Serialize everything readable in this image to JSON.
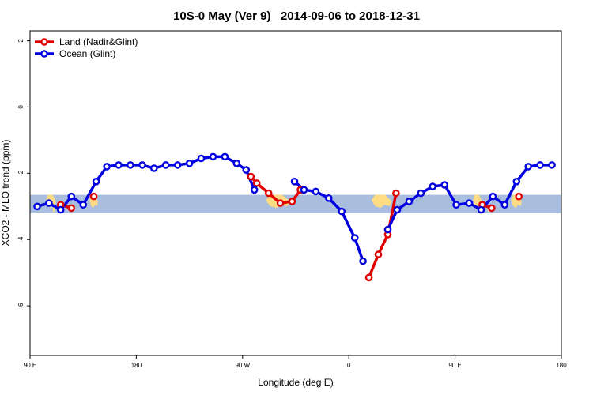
{
  "chart_data": {
    "type": "line",
    "title": "10S-0 May (Ver 9)   2014-09-06 to 2018-12-31",
    "xlabel": "Longitude (deg E)",
    "ylabel": "XCO2 - MLO trend (ppm)",
    "xlim": [
      90,
      540
    ],
    "ylim": [
      -7.5,
      2.3
    ],
    "x_ticks": [
      {
        "value": 90,
        "label": "90 E"
      },
      {
        "value": 180,
        "label": "180"
      },
      {
        "value": 270,
        "label": "90 W"
      },
      {
        "value": 360,
        "label": "0"
      },
      {
        "value": 450,
        "label": "90 E"
      },
      {
        "value": 540,
        "label": "180"
      }
    ],
    "y_ticks": [
      {
        "value": 2,
        "label": "2"
      },
      {
        "value": 0,
        "label": "0"
      },
      {
        "value": -2,
        "label": "-2"
      },
      {
        "value": -4,
        "label": "-4"
      },
      {
        "value": -6,
        "label": "-6"
      }
    ],
    "legend_position": "top-left",
    "band": {
      "ymin": -3.2,
      "ymax": -2.65
    },
    "colors": {
      "band": "#a9bedf",
      "land": "#fedc83",
      "land_series": "#e00000",
      "ocean_series": "#0000e0"
    },
    "series": [
      {
        "name": "Land (Nadir&Glint)",
        "color": "#e00000",
        "segments": [
          [
            [
              116,
              -2.95
            ],
            [
              125,
              -3.05
            ]
          ],
          [
            [
              144,
              -2.7
            ]
          ],
          [
            [
              277,
              -2.1
            ],
            [
              282,
              -2.3
            ],
            [
              292,
              -2.6
            ],
            [
              302,
              -2.9
            ],
            [
              312,
              -2.85
            ],
            [
              319,
              -2.5
            ]
          ],
          [
            [
              377,
              -5.15
            ],
            [
              385,
              -4.45
            ],
            [
              393,
              -3.85
            ],
            [
              400,
              -2.6
            ]
          ],
          [
            [
              473,
              -2.95
            ],
            [
              481,
              -3.05
            ]
          ],
          [
            [
              504,
              -2.7
            ]
          ]
        ]
      },
      {
        "name": "Ocean (Glint)",
        "color": "#0000e0",
        "segments": [
          [
            [
              96,
              -3.0
            ],
            [
              106,
              -2.9
            ],
            [
              116,
              -3.1
            ],
            [
              125,
              -2.7
            ],
            [
              135,
              -2.95
            ],
            [
              146,
              -2.25
            ],
            [
              155,
              -1.8
            ],
            [
              165,
              -1.75
            ],
            [
              175,
              -1.75
            ],
            [
              185,
              -1.75
            ],
            [
              195,
              -1.85
            ],
            [
              205,
              -1.75
            ],
            [
              215,
              -1.75
            ],
            [
              225,
              -1.7
            ],
            [
              235,
              -1.55
            ],
            [
              245,
              -1.5
            ],
            [
              255,
              -1.5
            ],
            [
              265,
              -1.7
            ],
            [
              273,
              -1.9
            ],
            [
              280,
              -2.5
            ]
          ],
          [
            [
              314,
              -2.25
            ],
            [
              322,
              -2.5
            ],
            [
              332,
              -2.55
            ],
            [
              343,
              -2.75
            ],
            [
              354,
              -3.15
            ],
            [
              365,
              -3.95
            ],
            [
              372,
              -4.65
            ]
          ],
          [
            [
              393,
              -3.7
            ],
            [
              401,
              -3.1
            ],
            [
              411,
              -2.85
            ],
            [
              421,
              -2.6
            ],
            [
              431,
              -2.4
            ],
            [
              441,
              -2.35
            ],
            [
              451,
              -2.95
            ],
            [
              462,
              -2.9
            ],
            [
              472,
              -3.1
            ],
            [
              482,
              -2.7
            ],
            [
              492,
              -2.95
            ],
            [
              502,
              -2.25
            ],
            [
              512,
              -1.8
            ],
            [
              522,
              -1.75
            ],
            [
              532,
              -1.75
            ]
          ]
        ]
      }
    ]
  }
}
